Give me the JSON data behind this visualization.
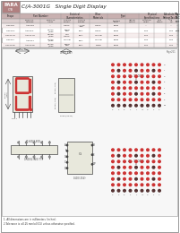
{
  "bg_color": "#ffffff",
  "border_color": "#999999",
  "logo_bg": "#b08080",
  "logo_text": "PARA",
  "logo_sub": "C/B",
  "title": "C(A-3001G   Single Digit Display",
  "title_italic": true,
  "table_header_bg": "#c8b0b0",
  "table_subheader_bg": "#ddd0d0",
  "table_alt_row_bg": "#f5ecec",
  "page_ref": "Page261",
  "segment_color": "#cc3333",
  "draw_color": "#444444",
  "dot_filled": "#cc3333",
  "dot_empty": "#553333",
  "note1": "1. All dimensions are in millimeters (inches).",
  "note2": "2.Tolerance is ±0.25 mm(±0.01) unless otherwise specified.",
  "header_cols": [
    "Shape",
    "Part Number",
    "Electrical\nCharacteristics",
    "Other\nMaterials",
    "Type",
    "Physical\nSpecifications",
    "Absolute Maximum\nRating (Ta=25°C)",
    "Fig.\nNo"
  ],
  "sub_headers": [
    "Common\nCathode",
    "Common\nAnode",
    "Forward\nCurrent",
    "Forward\nVoltage",
    "Emitted\nColor",
    "Optical\nOutput",
    "Mounting\nHeight",
    "Chip",
    "Others",
    "Avg\nmA",
    "1/10\nDuty",
    ""
  ],
  "rows": [
    [
      "C-3001E",
      "A-3001E",
      "GaAsP",
      "None",
      "---/0.05 Red",
      "Green",
      "9mm",
      "1.2v",
      "1.6v",
      "---"
    ],
    [
      "C-3001G",
      "A-3001G",
      "GaAsP/GaP",
      "Super Red",
      "8mA",
      "Green",
      "9mm",
      "1.5v",
      "1.6v",
      "8/80"
    ],
    [
      "C-3001YG",
      "A-3001YG",
      "GaAsP/GaP",
      "Yellow Green",
      "8mA",
      "Yellow",
      "9mm",
      "1.5v",
      "1.6v",
      "---"
    ],
    [
      "C-3001Y",
      "A-3001Y",
      "GaAsP/GaP",
      "Yellow",
      "8mA",
      "Yellow",
      "9mm",
      "1.5v",
      "1.6v",
      "---"
    ],
    [
      "C-3001SR",
      "A-3001SR",
      "GaAsP/GaP",
      "Super Red",
      "8mA",
      "S.Red",
      "9mm",
      "1.5v",
      "1.6v",
      "---"
    ]
  ],
  "c3001g_dots": [
    [
      1,
      1,
      1,
      1,
      1,
      1,
      1,
      1,
      1
    ],
    [
      1,
      0,
      1,
      1,
      0,
      1,
      1,
      0,
      1
    ],
    [
      1,
      1,
      1,
      1,
      1,
      1,
      1,
      1,
      1
    ],
    [
      1,
      0,
      1,
      1,
      0,
      1,
      1,
      0,
      1
    ],
    [
      1,
      1,
      1,
      1,
      1,
      1,
      1,
      1,
      1
    ],
    [
      1,
      0,
      1,
      1,
      0,
      1,
      1,
      0,
      1
    ],
    [
      1,
      1,
      1,
      1,
      1,
      1,
      1,
      1,
      1
    ],
    [
      0,
      0,
      0,
      0,
      0,
      0,
      0,
      0,
      0
    ]
  ],
  "a3001g_dots": [
    [
      1,
      1,
      1,
      1,
      1,
      1,
      1,
      1,
      1
    ],
    [
      1,
      0,
      1,
      1,
      0,
      1,
      1,
      0,
      1
    ],
    [
      1,
      1,
      1,
      1,
      1,
      1,
      1,
      1,
      1
    ],
    [
      1,
      0,
      1,
      1,
      0,
      1,
      1,
      0,
      1
    ],
    [
      1,
      1,
      1,
      1,
      1,
      1,
      1,
      1,
      1
    ],
    [
      1,
      0,
      1,
      1,
      0,
      1,
      1,
      0,
      1
    ],
    [
      1,
      1,
      1,
      1,
      1,
      1,
      1,
      1,
      1
    ],
    [
      0,
      0,
      0,
      0,
      0,
      0,
      0,
      0,
      0
    ]
  ]
}
